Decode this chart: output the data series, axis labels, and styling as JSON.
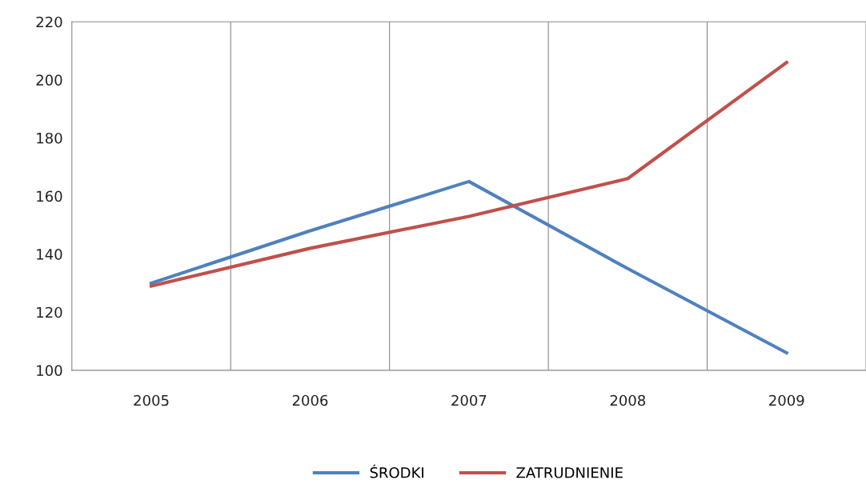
{
  "chart_data": {
    "type": "line",
    "categories": [
      "2005",
      "2006",
      "2007",
      "2008",
      "2009"
    ],
    "series": [
      {
        "name": "ŚRODKI",
        "color": "#4f81bd",
        "values": [
          130,
          148,
          165,
          135,
          106
        ]
      },
      {
        "name": "ZATRUDNIENIE",
        "color": "#c0504d",
        "values": [
          129,
          142,
          153,
          166,
          206
        ]
      }
    ],
    "ylim": [
      100,
      220
    ],
    "yticks": [
      100,
      120,
      140,
      160,
      180,
      200,
      220
    ],
    "grid": "x",
    "legend": "bottom",
    "marker": "none",
    "line_style": "solid"
  }
}
